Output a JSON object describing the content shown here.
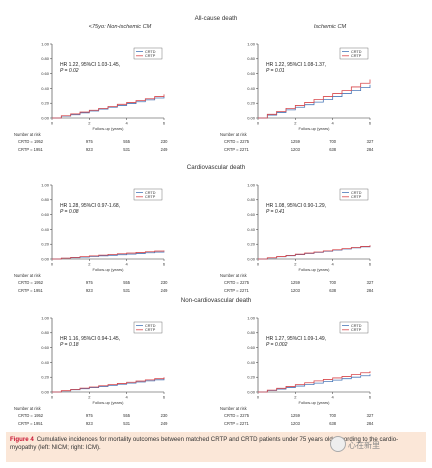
{
  "columns": {
    "left": "<75yo: Non-ischemic CM",
    "right": "Ischemic CM"
  },
  "rows": [
    "All-cause death",
    "Cardiovascular death",
    "Non-cardiovascular death"
  ],
  "colors": {
    "crtd": "#4a78b8",
    "crtp": "#d8474b"
  },
  "axis": {
    "xlabel": "Follow-up (years)",
    "ymax_label": "1.00"
  },
  "number_at_risk_title": "Number at risk",
  "chart_data": [
    {
      "type": "line",
      "row": 0,
      "col": 0,
      "title": "",
      "xlabel": "Follow-up (years)",
      "ylabel": "",
      "xlim": [
        0,
        6
      ],
      "ylim": [
        0,
        1
      ],
      "x_ticks": [
        "0",
        "2",
        "4",
        "6"
      ],
      "y_ticks": [
        "0.00",
        "0.20",
        "0.40",
        "0.60",
        "0.80",
        "1.00"
      ],
      "legend": [
        "CRTD",
        "CRTP"
      ],
      "annotation": {
        "hr": "HR 1.22, 95%CI 1.03-1.45,",
        "p": "P = 0.02"
      },
      "series": [
        {
          "name": "CRTD",
          "x": [
            0,
            0.5,
            1,
            1.5,
            2,
            2.5,
            3,
            3.5,
            4,
            4.5,
            5,
            5.5,
            6
          ],
          "y": [
            0,
            0.025,
            0.045,
            0.07,
            0.095,
            0.12,
            0.145,
            0.17,
            0.195,
            0.22,
            0.245,
            0.27,
            0.29
          ]
        },
        {
          "name": "CRTP",
          "x": [
            0,
            0.5,
            1,
            1.5,
            2,
            2.5,
            3,
            3.5,
            4,
            4.5,
            5,
            5.5,
            6
          ],
          "y": [
            0,
            0.03,
            0.055,
            0.08,
            0.105,
            0.13,
            0.155,
            0.185,
            0.21,
            0.235,
            0.26,
            0.29,
            0.32
          ]
        }
      ],
      "risk": {
        "crtd_label": "CRTD = 1952",
        "crtd": [
          "975",
          "555",
          "230"
        ],
        "crtp_label": "CRTP = 1951",
        "crtp": [
          "923",
          "531",
          "249"
        ]
      }
    },
    {
      "type": "line",
      "row": 0,
      "col": 1,
      "title": "",
      "xlabel": "Follow-up (years)",
      "ylabel": "",
      "xlim": [
        0,
        6
      ],
      "ylim": [
        0,
        1
      ],
      "x_ticks": [
        "0",
        "2",
        "4",
        "6"
      ],
      "y_ticks": [
        "0.00",
        "0.20",
        "0.40",
        "0.60",
        "0.80",
        "1.00"
      ],
      "legend": [
        "CRTD",
        "CRTP"
      ],
      "annotation": {
        "hr": "HR 1.22, 95%CI 1.08-1.37,",
        "p": "P = 0.01"
      },
      "series": [
        {
          "name": "CRTD",
          "x": [
            0,
            0.5,
            1,
            1.5,
            2,
            2.5,
            3,
            3.5,
            4,
            4.5,
            5,
            5.5,
            6
          ],
          "y": [
            0,
            0.04,
            0.075,
            0.11,
            0.145,
            0.18,
            0.215,
            0.25,
            0.29,
            0.33,
            0.37,
            0.41,
            0.45
          ]
        },
        {
          "name": "CRTP",
          "x": [
            0,
            0.5,
            1,
            1.5,
            2,
            2.5,
            3,
            3.5,
            4,
            4.5,
            5,
            5.5,
            6
          ],
          "y": [
            0,
            0.05,
            0.09,
            0.13,
            0.17,
            0.21,
            0.25,
            0.29,
            0.33,
            0.37,
            0.42,
            0.47,
            0.52
          ]
        }
      ],
      "risk": {
        "crtd_label": "CRTD = 2275",
        "crtd": [
          "1259",
          "700",
          "327"
        ],
        "crtp_label": "CRTP = 2271",
        "crtp": [
          "1203",
          "638",
          "284"
        ]
      }
    },
    {
      "type": "line",
      "row": 1,
      "col": 0,
      "title": "",
      "xlabel": "Follow-up (years)",
      "ylabel": "",
      "xlim": [
        0,
        6
      ],
      "ylim": [
        0,
        1
      ],
      "x_ticks": [
        "0",
        "2",
        "4",
        "6"
      ],
      "y_ticks": [
        "0.00",
        "0.20",
        "0.40",
        "0.60",
        "0.80",
        "1.00"
      ],
      "legend": [
        "CRTD",
        "CRTP"
      ],
      "annotation": {
        "hr": "HR 1.28, 95%CI 0.97-1.68,",
        "p": "P = 0.08"
      },
      "series": [
        {
          "name": "CRTD",
          "x": [
            0,
            0.5,
            1,
            1.5,
            2,
            2.5,
            3,
            3.5,
            4,
            4.5,
            5,
            5.5,
            6
          ],
          "y": [
            0,
            0.01,
            0.018,
            0.026,
            0.034,
            0.042,
            0.05,
            0.058,
            0.066,
            0.075,
            0.084,
            0.093,
            0.1
          ]
        },
        {
          "name": "CRTP",
          "x": [
            0,
            0.5,
            1,
            1.5,
            2,
            2.5,
            3,
            3.5,
            4,
            4.5,
            5,
            5.5,
            6
          ],
          "y": [
            0,
            0.012,
            0.022,
            0.032,
            0.042,
            0.052,
            0.062,
            0.071,
            0.08,
            0.089,
            0.098,
            0.107,
            0.115
          ]
        }
      ],
      "risk": {
        "crtd_label": "CRTD = 1952",
        "crtd": [
          "975",
          "555",
          "230"
        ],
        "crtp_label": "CRTP = 1951",
        "crtp": [
          "923",
          "531",
          "249"
        ]
      }
    },
    {
      "type": "line",
      "row": 1,
      "col": 1,
      "title": "",
      "xlabel": "Follow-up (years)",
      "ylabel": "",
      "xlim": [
        0,
        6
      ],
      "ylim": [
        0,
        1
      ],
      "x_ticks": [
        "0",
        "2",
        "4",
        "6"
      ],
      "y_ticks": [
        "0.00",
        "0.20",
        "0.40",
        "0.60",
        "0.80",
        "1.00"
      ],
      "legend": [
        "CRTD",
        "CRTP"
      ],
      "annotation": {
        "hr": "HR 1.08, 95%CI 0.90-1.29,",
        "p": "P = 0.41"
      },
      "series": [
        {
          "name": "CRTD",
          "x": [
            0,
            0.5,
            1,
            1.5,
            2,
            2.5,
            3,
            3.5,
            4,
            4.5,
            5,
            5.5,
            6
          ],
          "y": [
            0,
            0.015,
            0.03,
            0.045,
            0.06,
            0.075,
            0.09,
            0.105,
            0.12,
            0.135,
            0.15,
            0.165,
            0.18
          ]
        },
        {
          "name": "CRTP",
          "x": [
            0,
            0.5,
            1,
            1.5,
            2,
            2.5,
            3,
            3.5,
            4,
            4.5,
            5,
            5.5,
            6
          ],
          "y": [
            0,
            0.017,
            0.033,
            0.049,
            0.065,
            0.08,
            0.095,
            0.11,
            0.125,
            0.14,
            0.155,
            0.17,
            0.185
          ]
        }
      ],
      "risk": {
        "crtd_label": "CRTD = 2275",
        "crtd": [
          "1259",
          "700",
          "327"
        ],
        "crtp_label": "CRTP = 2271",
        "crtp": [
          "1203",
          "638",
          "284"
        ]
      }
    },
    {
      "type": "line",
      "row": 2,
      "col": 0,
      "title": "",
      "xlabel": "Follow-up (years)",
      "ylabel": "",
      "xlim": [
        0,
        6
      ],
      "ylim": [
        0,
        1
      ],
      "x_ticks": [
        "0",
        "2",
        "4",
        "6"
      ],
      "y_ticks": [
        "0.00",
        "0.20",
        "0.40",
        "0.60",
        "0.80",
        "1.00"
      ],
      "legend": [
        "CRTD",
        "CRTP"
      ],
      "annotation": {
        "hr": "HR 1.16, 95%CI 0.94-1.45,",
        "p": "P = 0.18"
      },
      "series": [
        {
          "name": "CRTD",
          "x": [
            0,
            0.5,
            1,
            1.5,
            2,
            2.5,
            3,
            3.5,
            4,
            4.5,
            5,
            5.5,
            6
          ],
          "y": [
            0,
            0.015,
            0.03,
            0.045,
            0.06,
            0.075,
            0.09,
            0.105,
            0.12,
            0.135,
            0.15,
            0.165,
            0.19
          ]
        },
        {
          "name": "CRTP",
          "x": [
            0,
            0.5,
            1,
            1.5,
            2,
            2.5,
            3,
            3.5,
            4,
            4.5,
            5,
            5.5,
            6
          ],
          "y": [
            0,
            0.018,
            0.035,
            0.052,
            0.068,
            0.084,
            0.1,
            0.116,
            0.132,
            0.148,
            0.164,
            0.18,
            0.2
          ]
        }
      ],
      "risk": {
        "crtd_label": "CRTD = 1952",
        "crtd": [
          "975",
          "555",
          "230"
        ],
        "crtp_label": "CRTP = 1951",
        "crtp": [
          "923",
          "531",
          "249"
        ]
      }
    },
    {
      "type": "line",
      "row": 2,
      "col": 1,
      "title": "",
      "xlabel": "Follow-up (years)",
      "ylabel": "",
      "xlim": [
        0,
        6
      ],
      "ylim": [
        0,
        1
      ],
      "x_ticks": [
        "0",
        "2",
        "4",
        "6"
      ],
      "y_ticks": [
        "0.00",
        "0.20",
        "0.40",
        "0.60",
        "0.80",
        "1.00"
      ],
      "legend": [
        "CRTD",
        "CRTP"
      ],
      "annotation": {
        "hr": "HR 1.27, 95%CI 1.09-1.49,",
        "p": "P = 0.002"
      },
      "series": [
        {
          "name": "CRTD",
          "x": [
            0,
            0.5,
            1,
            1.5,
            2,
            2.5,
            3,
            3.5,
            4,
            4.5,
            5,
            5.5,
            6
          ],
          "y": [
            0,
            0.02,
            0.04,
            0.06,
            0.08,
            0.1,
            0.12,
            0.14,
            0.16,
            0.18,
            0.2,
            0.22,
            0.24
          ]
        },
        {
          "name": "CRTP",
          "x": [
            0,
            0.5,
            1,
            1.5,
            2,
            2.5,
            3,
            3.5,
            4,
            4.5,
            5,
            5.5,
            6
          ],
          "y": [
            0,
            0.025,
            0.05,
            0.075,
            0.1,
            0.125,
            0.15,
            0.17,
            0.19,
            0.21,
            0.235,
            0.26,
            0.28
          ]
        }
      ],
      "risk": {
        "crtd_label": "CRTD = 2275",
        "crtd": [
          "1259",
          "700",
          "327"
        ],
        "crtp_label": "CRTP = 2271",
        "crtp": [
          "1203",
          "638",
          "284"
        ]
      }
    }
  ],
  "caption": {
    "label": "Figure 4",
    "text": "Cumulative incidences for mortality outcomes between matched CRTP and CRTD patients under 75 years old according to the cardio-myopathy (left: NICM; right: ICM)."
  },
  "watermark": "心在新里"
}
